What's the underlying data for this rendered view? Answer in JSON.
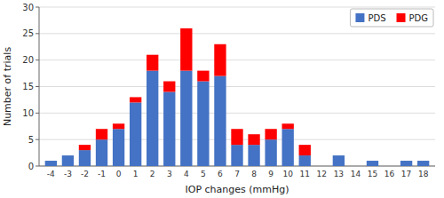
{
  "chart_data": {
    "type": "bar",
    "stacked": true,
    "xlabel": "IOP changes (mmHg)",
    "ylabel": "Number of trials",
    "categories": [
      -4,
      -3,
      -2,
      -1,
      0,
      1,
      2,
      3,
      4,
      5,
      6,
      7,
      8,
      9,
      10,
      11,
      12,
      13,
      14,
      15,
      16,
      17,
      18
    ],
    "series": [
      {
        "name": "PDS",
        "color": "#4472C4",
        "values": [
          1,
          2,
          3,
          5,
          7,
          12,
          18,
          14,
          18,
          16,
          17,
          4,
          4,
          5,
          7,
          2,
          0,
          2,
          0,
          1,
          0,
          1,
          1
        ]
      },
      {
        "name": "PDG",
        "color": "#FF0000",
        "values": [
          0,
          0,
          1,
          2,
          1,
          1,
          3,
          2,
          8,
          2,
          6,
          3,
          2,
          2,
          1,
          2,
          0,
          0,
          0,
          0,
          0,
          0,
          0
        ]
      }
    ],
    "xlim": [
      -4.7,
      18.7
    ],
    "ylim": [
      0,
      30
    ],
    "yticks": [
      0,
      5,
      10,
      15,
      20,
      25,
      30
    ],
    "grid": true,
    "legend": "upper right"
  }
}
